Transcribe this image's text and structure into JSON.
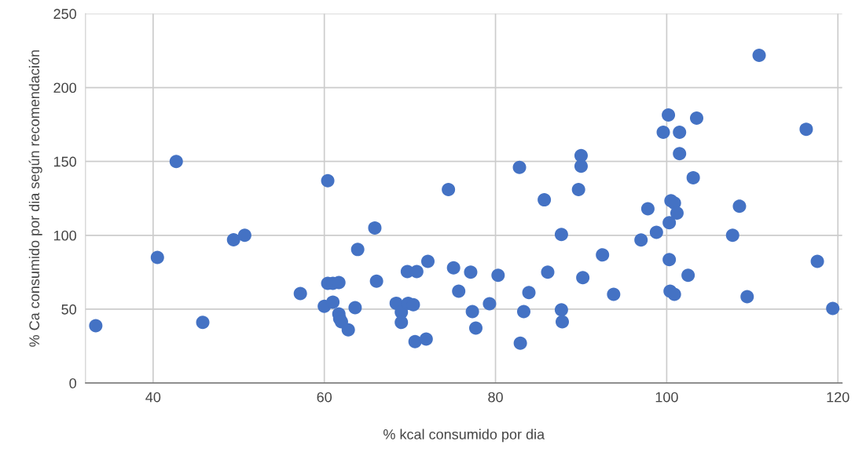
{
  "chart_data": {
    "type": "scatter",
    "xlabel": "% kcal consumido por dia",
    "ylabel": "% Ca consumido por dia según recomendación",
    "x": [
      33.3,
      40.5,
      42.7,
      45.8,
      49.4,
      50.7,
      57.2,
      60.0,
      60.4,
      60.4,
      61.0,
      61.7,
      61.0,
      61.7,
      61.8,
      62.0,
      62.8,
      63.6,
      63.9,
      65.9,
      66.1,
      68.4,
      69.0,
      69.0,
      69.7,
      70.8,
      69.8,
      70.4,
      70.6,
      71.9,
      72.1,
      74.5,
      75.1,
      75.7,
      77.1,
      77.3,
      77.7,
      79.3,
      80.3,
      82.8,
      82.9,
      83.3,
      83.9,
      85.7,
      86.1,
      87.7,
      87.7,
      87.8,
      89.7,
      90.0,
      90.0,
      90.2,
      92.5,
      93.8,
      97.0,
      97.8,
      98.8,
      99.6,
      100.2,
      100.3,
      100.3,
      100.5,
      100.4,
      100.9,
      100.9,
      101.2,
      101.5,
      101.5,
      102.5,
      103.1,
      103.5,
      107.7,
      108.5,
      109.4,
      110.8,
      116.3,
      117.6,
      119.4
    ],
    "series": [
      {
        "color": "#4472c4",
        "values": [
          38.8,
          85,
          150,
          41,
          97,
          100,
          60.6,
          52,
          67.5,
          137,
          67.5,
          68,
          54.8,
          46.8,
          43.6,
          41.5,
          36,
          51,
          90.4,
          105,
          69,
          54,
          47.9,
          41,
          75.5,
          75.5,
          54,
          53,
          28,
          29.8,
          82.4,
          131,
          78,
          62.2,
          75,
          48.4,
          37.2,
          53.7,
          72.9,
          146,
          27,
          48.4,
          61.2,
          124,
          75,
          100.5,
          49.5,
          41.5,
          131,
          154,
          146.8,
          71.3,
          86.7,
          60.1,
          96.8,
          118,
          102,
          169.7,
          181.4,
          108.5,
          83.5,
          123.4,
          62.2,
          60,
          121.8,
          115,
          169.7,
          155.3,
          72.9,
          139,
          179.3,
          100,
          119.7,
          58.5,
          221.8,
          171.8,
          82.4,
          50.5
        ]
      }
    ],
    "xlim": [
      32.1,
      120.5
    ],
    "ylim": [
      0,
      250
    ],
    "xticks": [
      40,
      60,
      80,
      100,
      120
    ],
    "yticks": [
      0,
      50,
      100,
      150,
      200,
      250
    ],
    "grid": true,
    "marker": "circle"
  }
}
